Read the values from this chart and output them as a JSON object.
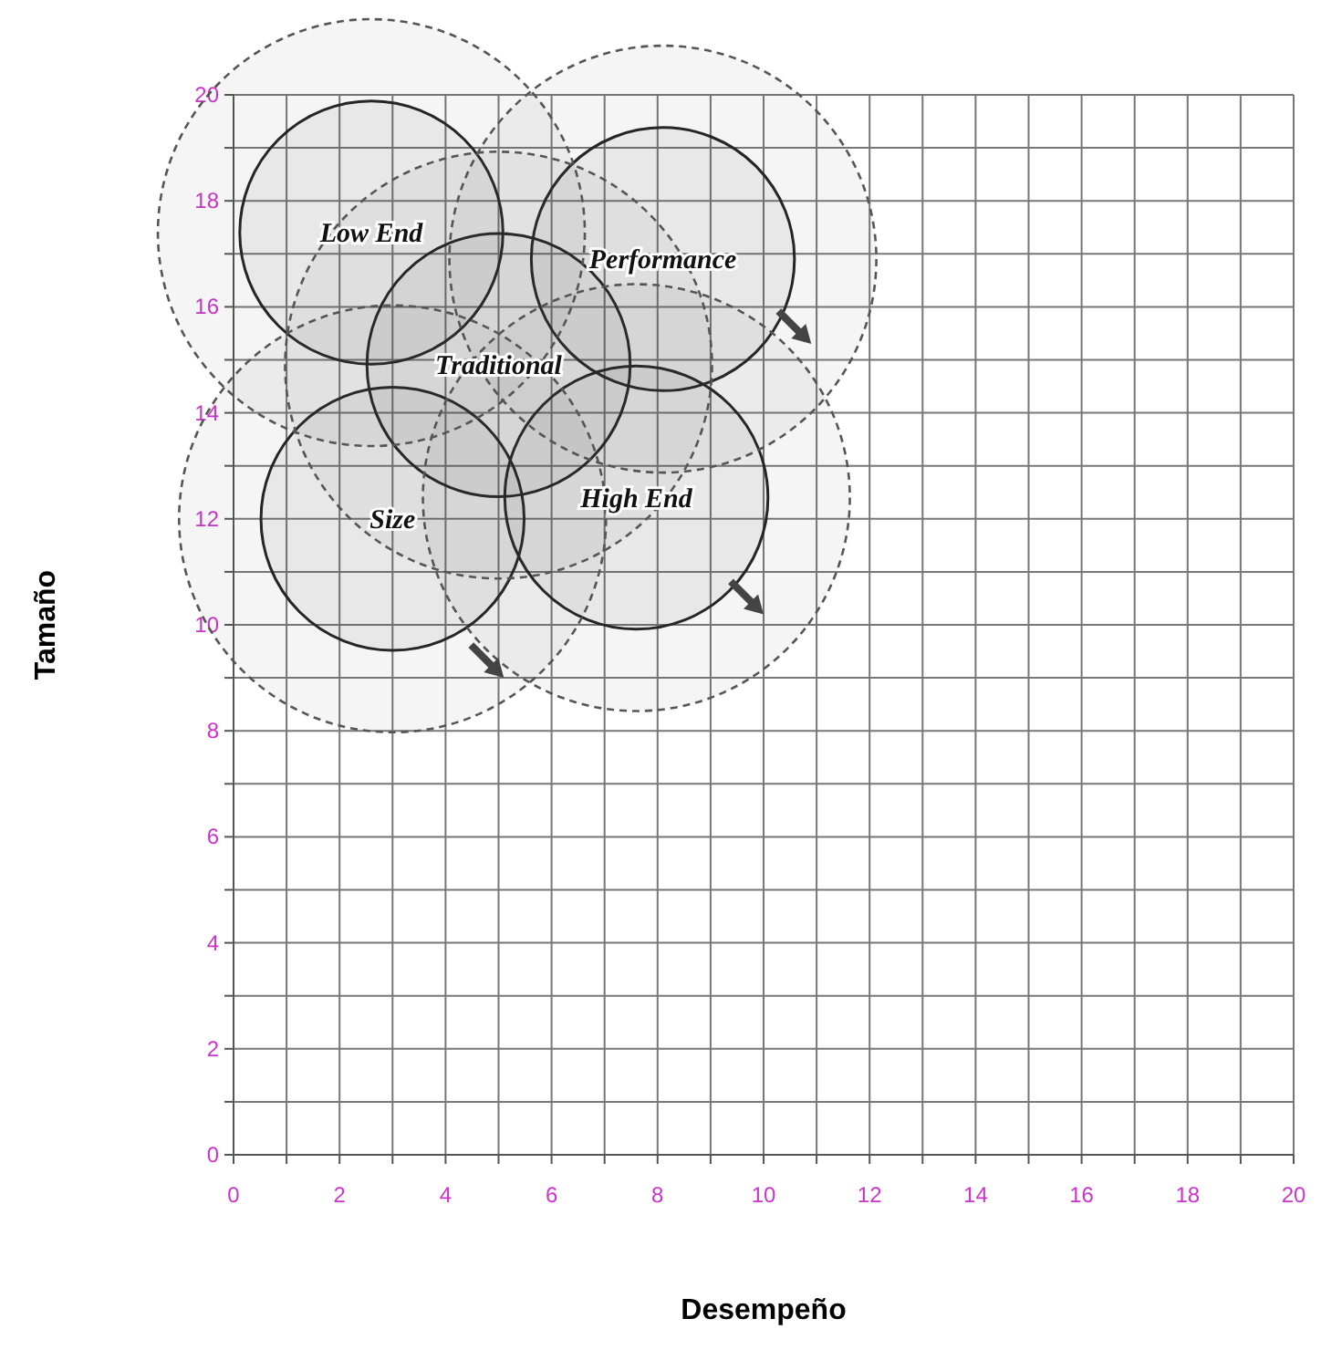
{
  "chart_data": {
    "type": "bubble",
    "xlabel": "Desempeño",
    "ylabel": "Tamaño",
    "xlim": [
      0,
      20
    ],
    "ylim": [
      0,
      20
    ],
    "xticks": [
      0,
      {
        "value": 1,
        "label": null
      },
      2,
      {
        "value": 3,
        "label": null
      },
      4,
      {
        "value": 5,
        "label": null
      },
      6,
      {
        "value": 7,
        "label": null
      },
      8,
      {
        "value": 9,
        "label": null
      },
      10,
      {
        "value": 11,
        "label": null
      },
      12,
      {
        "value": 13,
        "label": null
      },
      14,
      {
        "value": 15,
        "label": null
      },
      16,
      {
        "value": 17,
        "label": null
      },
      18,
      {
        "value": 19,
        "label": null
      },
      20
    ],
    "yticks": [
      0,
      {
        "value": 1,
        "label": null
      },
      2,
      {
        "value": 3,
        "label": null
      },
      4,
      {
        "value": 5,
        "label": null
      },
      6,
      {
        "value": 7,
        "label": null
      },
      8,
      {
        "value": 9,
        "label": null
      },
      10,
      {
        "value": 11,
        "label": null
      },
      12,
      {
        "value": 13,
        "label": null
      },
      14,
      {
        "value": 15,
        "label": null
      },
      16,
      {
        "value": 17,
        "label": null
      },
      18,
      {
        "value": 19,
        "label": null
      },
      20
    ],
    "grid": true,
    "series": [
      {
        "color": "#222222",
        "line_style": "solid",
        "x": [
          2.6,
          8.1,
          5.0,
          3.0,
          7.6
        ],
        "values": [
          17.4,
          16.9,
          14.9,
          12.0,
          12.4
        ],
        "sizes": [
          0.38,
          0.38,
          0.38,
          0.38,
          0.38
        ]
      },
      {
        "color": "#555555",
        "line_style": "dashed",
        "x": [
          2.6,
          8.1,
          5.0,
          3.0,
          7.6
        ],
        "values": [
          17.4,
          16.9,
          14.9,
          12.0,
          12.4
        ],
        "sizes": [
          1,
          1,
          1,
          1,
          1
        ]
      }
    ],
    "annotations": [
      {
        "text": "Low End",
        "x": 2.6,
        "y": 17.4
      },
      {
        "text": "Performance",
        "x": 8.1,
        "y": 16.9
      },
      {
        "text": "Traditional",
        "x": 5.0,
        "y": 14.9
      },
      {
        "text": "Size",
        "x": 3.0,
        "y": 12.0
      },
      {
        "text": "High End",
        "x": 7.6,
        "y": 12.4
      }
    ]
  }
}
